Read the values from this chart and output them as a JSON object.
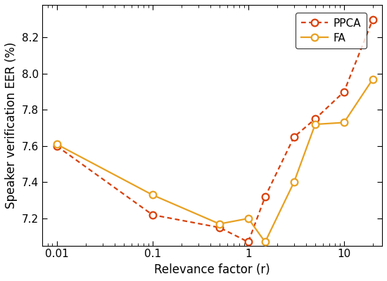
{
  "ppca_x": [
    0.01,
    0.1,
    0.5,
    1.0,
    1.5,
    3.0,
    5.0,
    10.0,
    20.0
  ],
  "ppca_y": [
    7.6,
    7.22,
    7.15,
    7.07,
    7.32,
    7.65,
    7.75,
    7.9,
    8.3
  ],
  "fa_x": [
    0.01,
    0.1,
    0.5,
    1.0,
    1.5,
    3.0,
    5.0,
    10.0,
    20.0
  ],
  "fa_y": [
    7.61,
    7.33,
    7.17,
    7.2,
    7.07,
    7.4,
    7.72,
    7.73,
    7.97
  ],
  "ppca_color": "#d9400a",
  "fa_color": "#e8a020",
  "xlabel": "Relevance factor (r)",
  "ylabel": "Speaker verification EER (%)",
  "xlim": [
    0.007,
    25
  ],
  "ylim": [
    7.05,
    8.38
  ],
  "yticks": [
    7.2,
    7.4,
    7.6,
    7.8,
    8.0,
    8.2
  ],
  "xticks": [
    0.01,
    0.1,
    1,
    10
  ],
  "xtick_labels": [
    "0.01",
    "0.1",
    "1",
    "10"
  ],
  "legend_ppca": "PPCA",
  "legend_fa": "FA",
  "marker": "o",
  "markersize": 7,
  "linewidth": 1.6
}
